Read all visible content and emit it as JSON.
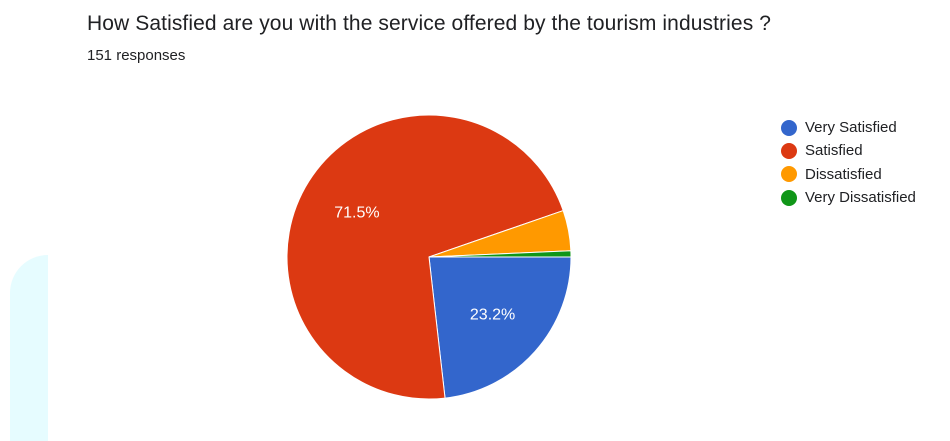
{
  "title": "How Satisfied are you with the service offered by the tourism industries ?",
  "subtitle": "151 responses",
  "chart_data": {
    "type": "pie",
    "title": "How Satisfied are you with the service offered by the tourism industries ?",
    "total_responses": 151,
    "categories": [
      "Very Satisfied",
      "Satisfied",
      "Dissatisfied",
      "Very Dissatisfied"
    ],
    "values": [
      23.2,
      71.5,
      4.6,
      0.7
    ],
    "unit": "%",
    "colors": [
      "#3366cc",
      "#dc3912",
      "#ff9900",
      "#109618"
    ],
    "data_labels": [
      "23.2%",
      "71.5%",
      "",
      ""
    ],
    "legend_position": "right"
  }
}
